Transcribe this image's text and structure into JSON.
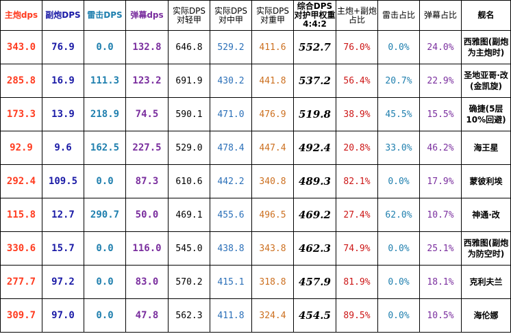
{
  "header": {
    "main_dps": "主炮dps",
    "sub_dps": "副炮DPS",
    "torpedo_dps": "雷击DPS",
    "barrage_dps": "弹幕dps",
    "light": "实际DPS对轻甲",
    "medium": "实际DPS对中甲",
    "heavy": "实际DPS对重甲",
    "combined": "综合DPS对护甲权重4:4:2",
    "main_sub_pct": "主炮+副炮占比",
    "torpedo_pct": "雷击占比",
    "barrage_pct": "弹幕占比",
    "name": "舰名"
  },
  "rows": [
    {
      "main": "343.0",
      "sub": "76.9",
      "torp": "0.0",
      "barrage": "132.8",
      "light": "646.8",
      "medium": "529.2",
      "heavy": "411.6",
      "combined": "552.7",
      "ms_pct": "76.0%",
      "t_pct": "0.0%",
      "b_pct": "24.0%",
      "name": "西雅图(副炮为主炮时)"
    },
    {
      "main": "285.8",
      "sub": "16.9",
      "torp": "111.3",
      "barrage": "123.2",
      "light": "691.9",
      "medium": "430.2",
      "heavy": "441.8",
      "combined": "537.2",
      "ms_pct": "56.4%",
      "t_pct": "20.7%",
      "b_pct": "22.9%",
      "name": "圣地亚哥·改(金凯旋)"
    },
    {
      "main": "173.3",
      "sub": "13.9",
      "torp": "218.9",
      "barrage": "74.5",
      "light": "590.1",
      "medium": "471.0",
      "heavy": "476.9",
      "combined": "519.8",
      "ms_pct": "38.9%",
      "t_pct": "45.5%",
      "b_pct": "15.5%",
      "name": "确捷(5层 10%回避)"
    },
    {
      "main": "92.9",
      "sub": "9.6",
      "torp": "162.5",
      "barrage": "227.5",
      "light": "529.0",
      "medium": "478.4",
      "heavy": "447.4",
      "combined": "492.4",
      "ms_pct": "20.8%",
      "t_pct": "33.0%",
      "b_pct": "46.2%",
      "name": "海王星"
    },
    {
      "main": "292.4",
      "sub": "109.5",
      "torp": "0.0",
      "barrage": "87.3",
      "light": "610.6",
      "medium": "442.2",
      "heavy": "340.8",
      "combined": "489.3",
      "ms_pct": "82.1%",
      "t_pct": "0.0%",
      "b_pct": "17.9%",
      "name": "蒙彼利埃"
    },
    {
      "main": "115.8",
      "sub": "12.7",
      "torp": "290.7",
      "barrage": "50.0",
      "light": "469.1",
      "medium": "455.6",
      "heavy": "496.5",
      "combined": "469.2",
      "ms_pct": "27.4%",
      "t_pct": "62.0%",
      "b_pct": "10.7%",
      "name": "神通·改"
    },
    {
      "main": "330.6",
      "sub": "15.7",
      "torp": "0.0",
      "barrage": "116.0",
      "light": "545.0",
      "medium": "438.8",
      "heavy": "343.8",
      "combined": "462.3",
      "ms_pct": "74.9%",
      "t_pct": "0.0%",
      "b_pct": "25.1%",
      "name": "西雅图(副炮为防空时)"
    },
    {
      "main": "277.7",
      "sub": "97.2",
      "torp": "0.0",
      "barrage": "83.0",
      "light": "570.2",
      "medium": "415.1",
      "heavy": "318.8",
      "combined": "457.9",
      "ms_pct": "81.9%",
      "t_pct": "0.0%",
      "b_pct": "18.1%",
      "name": "克利夫兰"
    },
    {
      "main": "309.7",
      "sub": "97.0",
      "torp": "0.0",
      "barrage": "47.8",
      "light": "562.3",
      "medium": "411.8",
      "heavy": "324.4",
      "combined": "454.5",
      "ms_pct": "89.5%",
      "t_pct": "0.0%",
      "b_pct": "10.5%",
      "name": "海伦娜"
    }
  ]
}
